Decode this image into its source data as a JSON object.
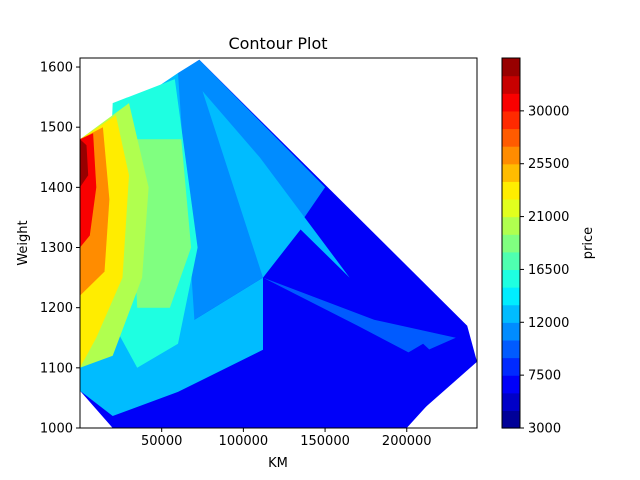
{
  "chart_data": {
    "type": "contourf",
    "title": "Contour Plot",
    "xlabel": "KM",
    "ylabel": "Weight",
    "xlim": [
      0,
      243000
    ],
    "ylim": [
      1000,
      1615
    ],
    "x_ticks": [
      50000,
      100000,
      150000,
      200000
    ],
    "x_tick_labels": [
      "50000",
      "100000",
      "150000",
      "200000"
    ],
    "y_ticks": [
      1000,
      1100,
      1200,
      1300,
      1400,
      1500,
      1600
    ],
    "y_tick_labels": [
      "1000",
      "1100",
      "1200",
      "1300",
      "1400",
      "1500",
      "1600"
    ],
    "colorbar": {
      "label": "price",
      "colormap": "jet",
      "range": [
        3000,
        34500
      ],
      "ticks": [
        3000,
        7500,
        12000,
        16500,
        21000,
        25500,
        30000
      ],
      "tick_labels": [
        "3000",
        "7500",
        "12000",
        "16500",
        "21000",
        "25500",
        "30000"
      ],
      "level_step": 1500
    },
    "data_hull": [
      [
        0,
        1480
      ],
      [
        73000,
        1612
      ],
      [
        237000,
        1170
      ],
      [
        243000,
        1110
      ],
      [
        197000,
        1000
      ],
      [
        20000,
        1000
      ],
      [
        0,
        1062
      ]
    ],
    "regions": [
      {
        "polygon": [
          [
            0,
            1480
          ],
          [
            73000,
            1612
          ],
          [
            237000,
            1170
          ],
          [
            243000,
            1110
          ],
          [
            197000,
            1000
          ],
          [
            20000,
            1000
          ],
          [
            0,
            1062
          ]
        ],
        "value": 7000
      },
      {
        "polygon": [
          [
            60000,
            1590
          ],
          [
            73000,
            1612
          ],
          [
            150000,
            1400
          ],
          [
            112000,
            1250
          ],
          [
            70000,
            1180
          ],
          [
            40000,
            1300
          ]
        ],
        "value": 11500
      },
      {
        "polygon": [
          [
            75000,
            1560
          ],
          [
            112000,
            1250
          ],
          [
            135000,
            1330
          ],
          [
            165000,
            1250
          ],
          [
            110000,
            1450
          ]
        ],
        "value": 12500
      },
      {
        "polygon": [
          [
            112000,
            1250
          ],
          [
            170000,
            1170
          ],
          [
            205000,
            1120
          ],
          [
            230000,
            1150
          ],
          [
            180000,
            1180
          ]
        ],
        "value": 10000
      },
      {
        "polygon": [
          [
            0,
            1480
          ],
          [
            60000,
            1590
          ],
          [
            70000,
            1180
          ],
          [
            112000,
            1250
          ],
          [
            112000,
            1130
          ],
          [
            60000,
            1060
          ],
          [
            20000,
            1020
          ],
          [
            0,
            1062
          ]
        ],
        "value": 13000
      },
      {
        "polygon": [
          [
            20000,
            1540
          ],
          [
            58000,
            1580
          ],
          [
            72000,
            1300
          ],
          [
            60000,
            1140
          ],
          [
            35000,
            1100
          ],
          [
            15000,
            1200
          ]
        ],
        "value": 16000
      },
      {
        "polygon": [
          [
            30000,
            1480
          ],
          [
            62000,
            1480
          ],
          [
            68000,
            1300
          ],
          [
            55000,
            1200
          ],
          [
            35000,
            1200
          ]
        ],
        "value": 18500
      },
      {
        "polygon": [
          [
            0,
            1480
          ],
          [
            30000,
            1540
          ],
          [
            42000,
            1400
          ],
          [
            38000,
            1250
          ],
          [
            20000,
            1120
          ],
          [
            0,
            1100
          ]
        ],
        "value": 19500
      },
      {
        "polygon": [
          [
            0,
            1480
          ],
          [
            22000,
            1520
          ],
          [
            30000,
            1420
          ],
          [
            26000,
            1250
          ],
          [
            10000,
            1150
          ],
          [
            0,
            1100
          ]
        ],
        "value": 22500
      },
      {
        "polygon": [
          [
            0,
            1480
          ],
          [
            14000,
            1500
          ],
          [
            18000,
            1380
          ],
          [
            15000,
            1260
          ],
          [
            0,
            1220
          ]
        ],
        "value": 26000
      },
      {
        "polygon": [
          [
            0,
            1480
          ],
          [
            8000,
            1490
          ],
          [
            10000,
            1400
          ],
          [
            6000,
            1320
          ],
          [
            0,
            1300
          ]
        ],
        "value": 30000
      },
      {
        "polygon": [
          [
            0,
            1480
          ],
          [
            4000,
            1470
          ],
          [
            5000,
            1420
          ],
          [
            0,
            1400
          ]
        ],
        "value": 33000
      },
      {
        "polygon": [
          [
            112000,
            1230
          ],
          [
            200000,
            1000
          ],
          [
            120000,
            1000
          ],
          [
            112000,
            1090
          ]
        ],
        "value": 7000
      },
      {
        "polygon": [
          [
            160000,
            1060
          ],
          [
            200000,
            1000
          ],
          [
            230000,
            1090
          ],
          [
            210000,
            1140
          ]
        ],
        "value": 6000
      }
    ]
  }
}
